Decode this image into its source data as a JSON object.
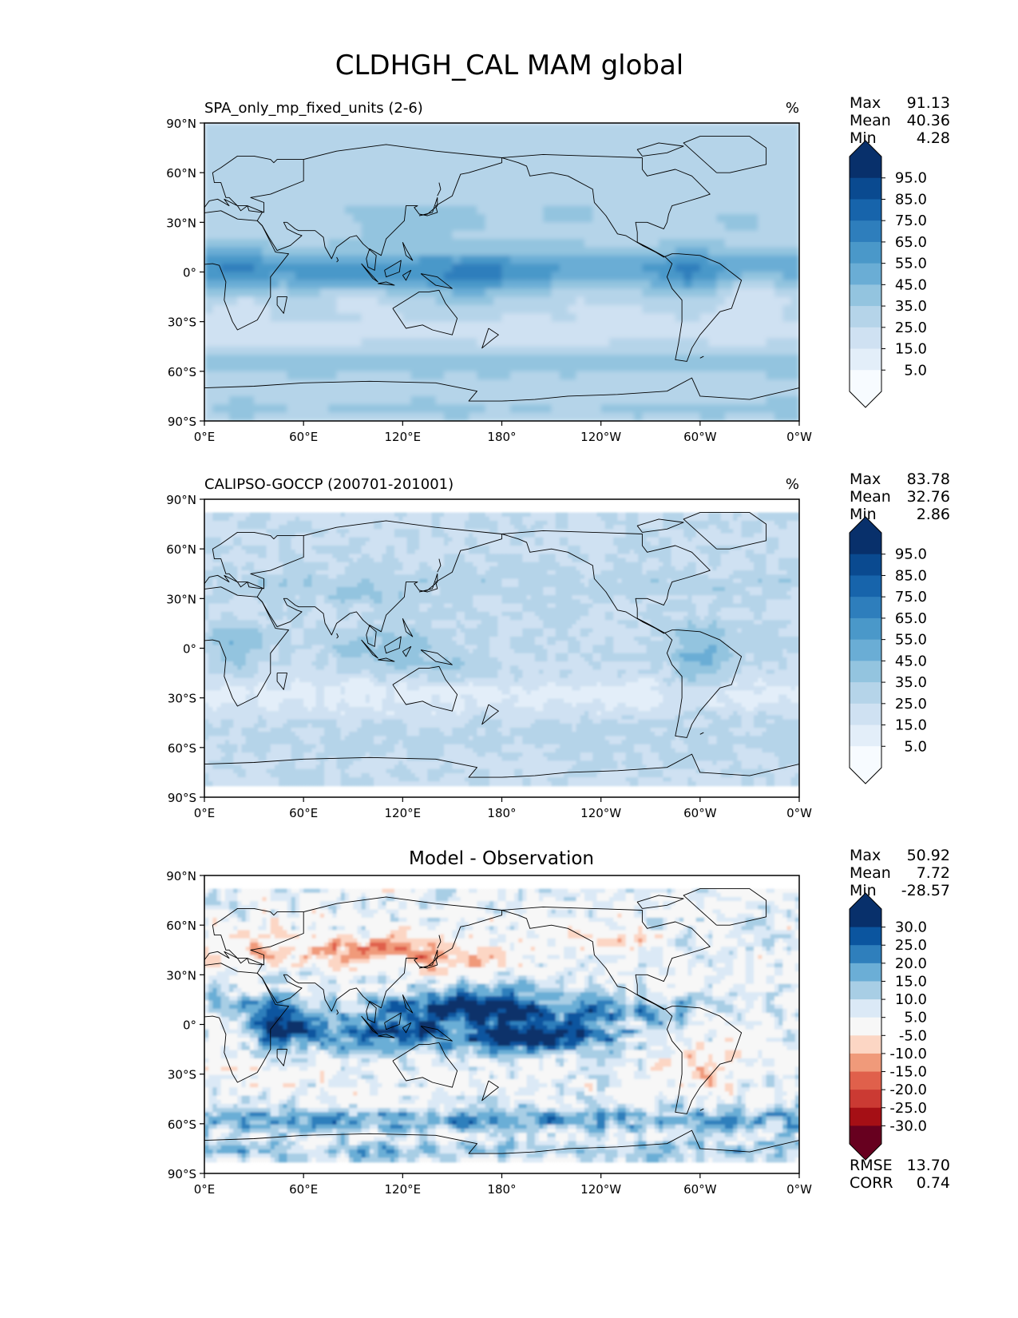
{
  "figure_title": "CLDHGH_CAL MAM global",
  "colors": {
    "seq": [
      "#f7fbff",
      "#deebf7",
      "#c6dbef",
      "#9ecae1",
      "#6baed6",
      "#4292c6",
      "#2171b5",
      "#08519c",
      "#08306b"
    ],
    "seq_panel": [
      "#f7fbff",
      "#e3eef9",
      "#cfe1f2",
      "#b5d4e9",
      "#93c4df",
      "#6aadd5",
      "#4a98c9",
      "#2e7ebc",
      "#1764ab",
      "#0a4a90",
      "#08306b"
    ],
    "seq_ext_low": "#f7fbff",
    "seq_ext_high": "#08306b",
    "div_panel": [
      "#67001f",
      "#a50f15",
      "#cb3a33",
      "#e0604b",
      "#f09a7a",
      "#fcd6c4",
      "#f7f7f7",
      "#dbe9f6",
      "#a8cee5",
      "#6baed6",
      "#2f7fbc",
      "#0b559f",
      "#08306b"
    ],
    "land_line": "#000000"
  },
  "chart_data": [
    {
      "type": "heatmap",
      "panel": "test",
      "title": "SPA_only_mp_fixed_units (2-6)",
      "units": "%",
      "stats": {
        "max_label": "Max",
        "max": "91.13",
        "mean_label": "Mean",
        "mean": "40.36",
        "min_label": "Min",
        "min": "4.28"
      },
      "lat_ticks": [
        "90°N",
        "60°N",
        "30°N",
        "0°",
        "30°S",
        "60°S",
        "90°S"
      ],
      "lon_ticks": [
        "0°E",
        "60°E",
        "120°E",
        "180°",
        "120°W",
        "60°W",
        "0°W"
      ],
      "colorbar_levels": [
        "95.0",
        "85.0",
        "75.0",
        "65.0",
        "55.0",
        "45.0",
        "35.0",
        "25.0",
        "15.0",
        "5.0"
      ],
      "field": "model",
      "value_range": [
        4.28,
        91.13
      ]
    },
    {
      "type": "heatmap",
      "panel": "reference",
      "title": "CALIPSO-GOCCP (200701-201001)",
      "units": "%",
      "stats": {
        "max_label": "Max",
        "max": "83.78",
        "mean_label": "Mean",
        "mean": "32.76",
        "min_label": "Min",
        "min": "2.86"
      },
      "lat_ticks": [
        "90°N",
        "60°N",
        "30°N",
        "0°",
        "30°S",
        "60°S",
        "90°S"
      ],
      "lon_ticks": [
        "0°E",
        "60°E",
        "120°E",
        "180°",
        "120°W",
        "60°W",
        "0°W"
      ],
      "colorbar_levels": [
        "95.0",
        "85.0",
        "75.0",
        "65.0",
        "55.0",
        "45.0",
        "35.0",
        "25.0",
        "15.0",
        "5.0"
      ],
      "field": "obs",
      "value_range": [
        2.86,
        83.78
      ],
      "data_lat_range": [
        -82,
        82
      ]
    },
    {
      "type": "heatmap",
      "panel": "difference",
      "title": "Model - Observation",
      "units": "",
      "stats": {
        "max_label": "Max",
        "max": "50.92",
        "mean_label": "Mean",
        "mean": "7.72",
        "min_label": "Min",
        "min": "-28.57"
      },
      "metrics": {
        "rmse_label": "RMSE",
        "rmse": "13.70",
        "corr_label": "CORR",
        "corr": "0.74"
      },
      "lat_ticks": [
        "90°N",
        "60°N",
        "30°N",
        "0°",
        "30°S",
        "60°S",
        "90°S"
      ],
      "lon_ticks": [
        "0°E",
        "60°E",
        "120°E",
        "180°",
        "120°W",
        "60°W",
        "0°W"
      ],
      "colorbar_levels": [
        "30.0",
        "25.0",
        "20.0",
        "15.0",
        "10.0",
        "5.0",
        "-5.0",
        "-10.0",
        "-15.0",
        "-20.0",
        "-25.0",
        "-30.0"
      ],
      "field": "diff",
      "value_range": [
        -28.57,
        50.92
      ],
      "data_lat_range": [
        -82,
        82
      ]
    }
  ]
}
